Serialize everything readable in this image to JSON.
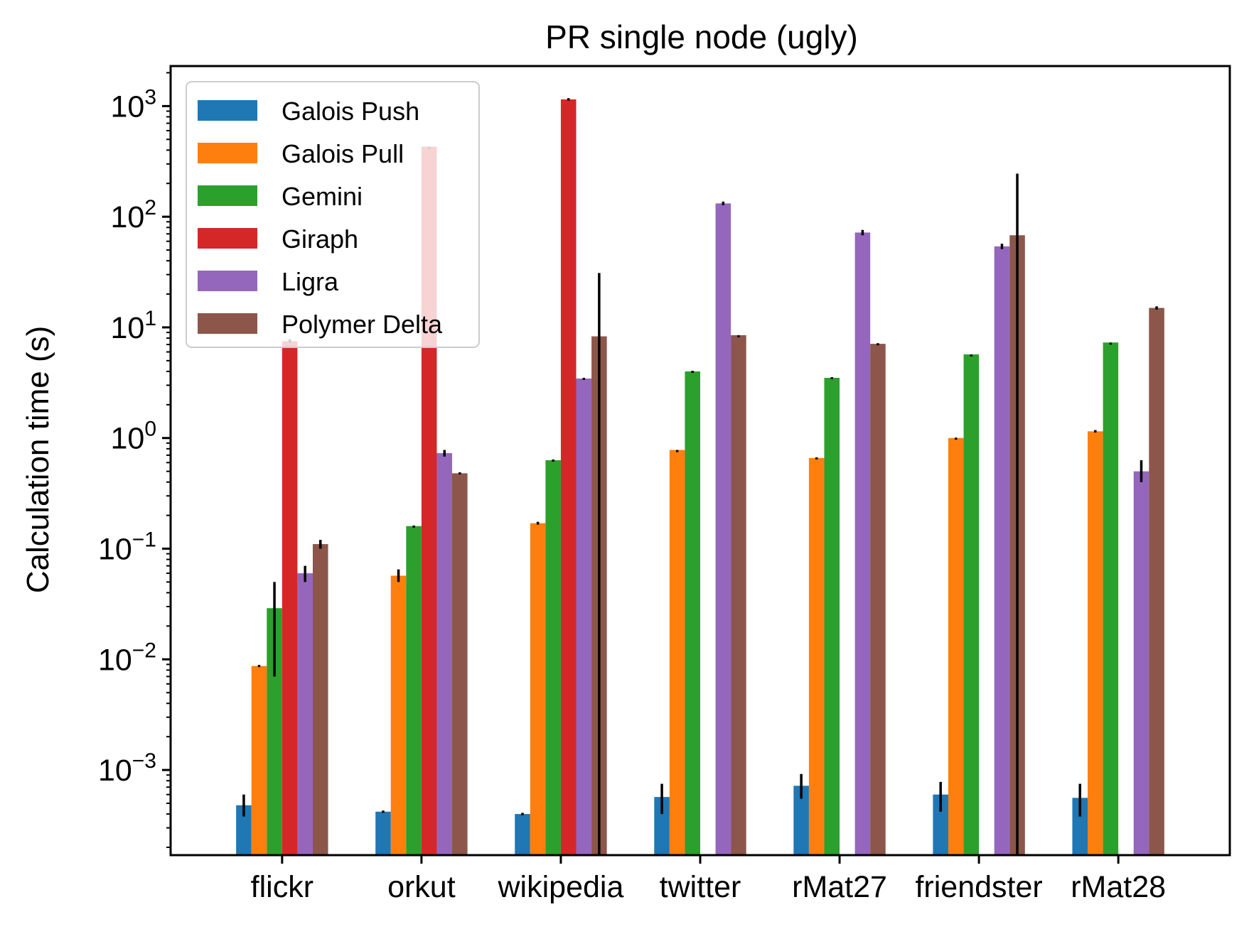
{
  "chart_data": {
    "type": "bar",
    "title": "PR single node (ugly)",
    "xlabel": "",
    "ylabel": "Calculation time (s)",
    "yscale": "log",
    "ylim": [
      0.00017,
      2300
    ],
    "yticks": [
      {
        "base": "10",
        "exp": "3"
      },
      {
        "base": "10",
        "exp": "2"
      },
      {
        "base": "10",
        "exp": "1"
      },
      {
        "base": "10",
        "exp": "0"
      },
      {
        "base": "10",
        "exp": "−1"
      },
      {
        "base": "10",
        "exp": "−2"
      },
      {
        "base": "10",
        "exp": "−3"
      }
    ],
    "ytick_values": [
      1000,
      100,
      10,
      1,
      0.1,
      0.01,
      0.001
    ],
    "categories": [
      "flickr",
      "orkut",
      "wikipedia",
      "twitter",
      "rMat27",
      "friendster",
      "rMat28"
    ],
    "legend_position": "top-left",
    "series": [
      {
        "name": "Galois Push",
        "color": "#1f77b4",
        "values": [
          0.00048,
          0.00042,
          0.0004,
          0.00057,
          0.00072,
          0.0006,
          0.00056
        ],
        "err_low": [
          0.00038,
          0.00041,
          0.00039,
          0.0004,
          0.00055,
          0.00042,
          0.00038
        ],
        "err_high": [
          0.0006,
          0.00043,
          0.00041,
          0.00075,
          0.00092,
          0.00078,
          0.00075
        ]
      },
      {
        "name": "Galois Pull",
        "color": "#ff7f0e",
        "values": [
          0.0087,
          0.057,
          0.17,
          0.78,
          0.66,
          1.0,
          1.15
        ],
        "err_low": [
          0.0085,
          0.05,
          0.165,
          0.78,
          0.65,
          0.99,
          1.12
        ],
        "err_high": [
          0.0089,
          0.065,
          0.175,
          0.78,
          0.67,
          1.01,
          1.18
        ]
      },
      {
        "name": "Gemini",
        "color": "#2ca02c",
        "values": [
          0.029,
          0.16,
          0.63,
          4.0,
          3.5,
          5.7,
          7.3
        ],
        "err_low": [
          0.007,
          0.158,
          0.62,
          3.95,
          3.45,
          5.7,
          7.3
        ],
        "err_high": [
          0.05,
          0.162,
          0.64,
          4.05,
          3.55,
          5.7,
          7.3
        ]
      },
      {
        "name": "Giraph",
        "color": "#d62728",
        "values": [
          7.5,
          430,
          1150,
          null,
          null,
          null,
          null
        ],
        "err_low": [
          7.3,
          430,
          1120,
          null,
          null,
          null,
          null
        ],
        "err_high": [
          7.8,
          430,
          1180,
          null,
          null,
          null,
          null
        ]
      },
      {
        "name": "Ligra",
        "color": "#9467bd",
        "values": [
          0.06,
          0.73,
          3.45,
          132,
          72,
          54,
          0.5
        ],
        "err_low": [
          0.05,
          0.68,
          3.4,
          127,
          68,
          51,
          0.4
        ],
        "err_high": [
          0.07,
          0.78,
          3.5,
          137,
          76,
          57,
          0.63
        ]
      },
      {
        "name": "Polymer Delta",
        "color": "#8c564b",
        "values": [
          0.11,
          0.48,
          8.3,
          8.5,
          7.1,
          68,
          15
        ],
        "err_low": [
          0.1,
          0.47,
          0.00017,
          8.5,
          7.0,
          0.00017,
          14.5
        ],
        "err_high": [
          0.12,
          0.49,
          31,
          8.5,
          7.2,
          245,
          15.5
        ]
      }
    ]
  }
}
